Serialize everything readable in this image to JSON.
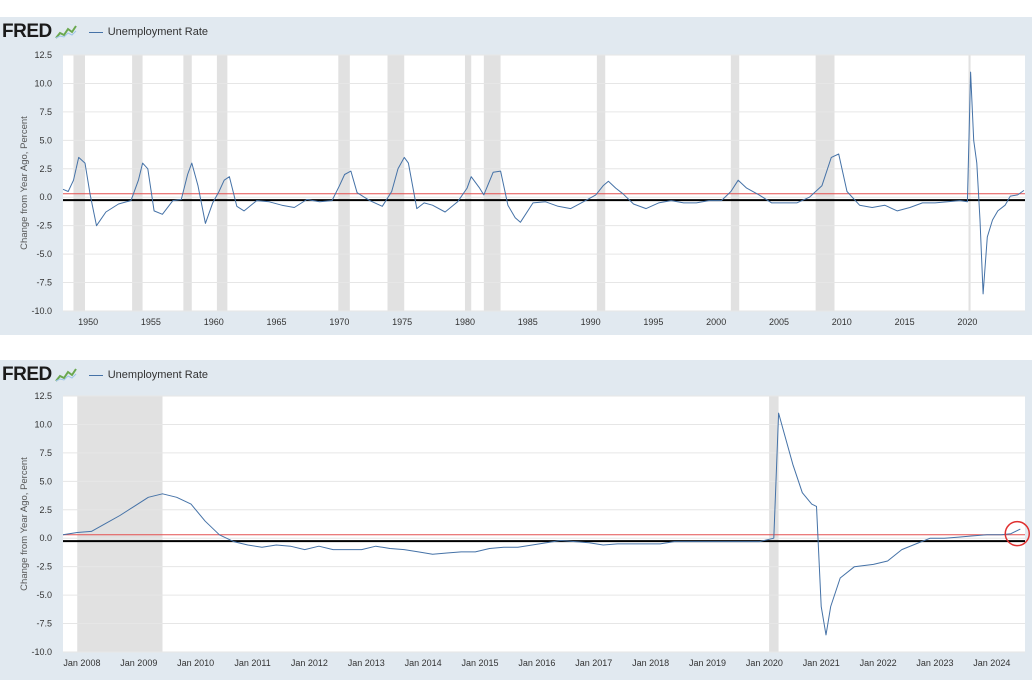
{
  "colors": {
    "panel_bg": "#e1e9f0",
    "plot_bg": "#ffffff",
    "series": "#4572a7",
    "recession": "#e1e1e1",
    "red_line": "#e45050",
    "zero_line": "#000000",
    "circle": "#e03030"
  },
  "chart_data": [
    {
      "type": "line",
      "brand": "FRED",
      "title": "",
      "ylabel": "Change from Year Ago, Percent",
      "xlabel": "",
      "ylim": [
        -10.0,
        12.5
      ],
      "xlim": [
        "1948-01",
        "2024-08"
      ],
      "x_ticks": [
        "1950",
        "1955",
        "1960",
        "1965",
        "1970",
        "1975",
        "1980",
        "1985",
        "1990",
        "1995",
        "2000",
        "2005",
        "2010",
        "2015",
        "2020"
      ],
      "x_tick_values": [
        "1950-01",
        "1955-01",
        "1960-01",
        "1965-01",
        "1970-01",
        "1975-01",
        "1980-01",
        "1985-01",
        "1990-01",
        "1995-01",
        "2000-01",
        "2005-01",
        "2010-01",
        "2015-01",
        "2020-01"
      ],
      "y_ticks": [
        "12.5",
        "10.0",
        "7.5",
        "5.0",
        "2.5",
        "0.0",
        "-2.5",
        "-5.0",
        "-7.5",
        "-10.0"
      ],
      "y_tick_values": [
        12.5,
        10.0,
        7.5,
        5.0,
        2.5,
        0.0,
        -2.5,
        -5.0,
        -7.5,
        -10.0
      ],
      "grid": "horizontal",
      "legend": "top-left",
      "recessions": [
        [
          "1948-11",
          "1949-10"
        ],
        [
          "1953-07",
          "1954-05"
        ],
        [
          "1957-08",
          "1958-04"
        ],
        [
          "1960-04",
          "1961-02"
        ],
        [
          "1969-12",
          "1970-11"
        ],
        [
          "1973-11",
          "1975-03"
        ],
        [
          "1980-01",
          "1980-07"
        ],
        [
          "1981-07",
          "1982-11"
        ],
        [
          "1990-07",
          "1991-03"
        ],
        [
          "2001-03",
          "2001-11"
        ],
        [
          "2007-12",
          "2009-06"
        ],
        [
          "2020-02",
          "2020-04"
        ]
      ],
      "reference_lines": [
        {
          "value": 0.3,
          "color": "#e45050"
        },
        {
          "value": -0.25,
          "color": "#000000"
        }
      ],
      "series": [
        {
          "name": "Unemployment Rate",
          "x": [
            "1948-01",
            "1948-06",
            "1948-11",
            "1949-04",
            "1949-10",
            "1950-03",
            "1950-09",
            "1951-06",
            "1952-06",
            "1953-06",
            "1954-01",
            "1954-05",
            "1954-10",
            "1955-04",
            "1955-12",
            "1956-10",
            "1957-06",
            "1957-12",
            "1958-04",
            "1958-10",
            "1959-05",
            "1959-12",
            "1960-06",
            "1960-11",
            "1961-04",
            "1961-11",
            "1962-06",
            "1963-06",
            "1964-06",
            "1965-06",
            "1966-06",
            "1967-06",
            "1968-06",
            "1969-06",
            "1970-01",
            "1970-06",
            "1970-12",
            "1971-06",
            "1972-06",
            "1973-06",
            "1974-03",
            "1974-09",
            "1975-03",
            "1975-07",
            "1976-03",
            "1976-10",
            "1977-06",
            "1978-06",
            "1979-06",
            "1980-03",
            "1980-07",
            "1981-03",
            "1981-07",
            "1982-04",
            "1982-11",
            "1983-06",
            "1984-01",
            "1984-06",
            "1985-06",
            "1986-06",
            "1987-06",
            "1988-06",
            "1989-06",
            "1990-06",
            "1991-01",
            "1991-06",
            "1992-01",
            "1992-08",
            "1993-06",
            "1994-06",
            "1995-06",
            "1996-06",
            "1997-06",
            "1998-06",
            "1999-06",
            "2000-06",
            "2001-03",
            "2001-10",
            "2002-06",
            "2003-06",
            "2004-06",
            "2005-06",
            "2006-06",
            "2007-06",
            "2008-06",
            "2009-03",
            "2009-10",
            "2010-06",
            "2011-06",
            "2012-06",
            "2013-06",
            "2014-06",
            "2015-06",
            "2016-06",
            "2017-06",
            "2018-06",
            "2019-06",
            "2020-01",
            "2020-04",
            "2020-07",
            "2020-10",
            "2021-01",
            "2021-04",
            "2021-08",
            "2022-01",
            "2022-06",
            "2023-01",
            "2023-06",
            "2024-01",
            "2024-07"
          ],
          "values": [
            0.7,
            0.5,
            1.5,
            3.5,
            3.0,
            0.2,
            -2.5,
            -1.3,
            -0.6,
            -0.3,
            1.5,
            3.0,
            2.5,
            -1.2,
            -1.5,
            -0.3,
            -0.2,
            2.0,
            3.0,
            1.0,
            -2.3,
            -0.5,
            0.5,
            1.5,
            1.8,
            -0.8,
            -1.2,
            -0.3,
            -0.4,
            -0.7,
            -0.9,
            -0.2,
            -0.4,
            -0.3,
            1.0,
            2.0,
            2.3,
            0.4,
            -0.3,
            -0.8,
            0.5,
            2.5,
            3.5,
            3.0,
            -1.0,
            -0.5,
            -0.7,
            -1.3,
            -0.4,
            0.8,
            1.8,
            0.8,
            0.2,
            2.2,
            2.3,
            -0.7,
            -1.8,
            -2.2,
            -0.5,
            -0.4,
            -0.8,
            -1.0,
            -0.4,
            0.2,
            1.0,
            1.4,
            0.8,
            0.3,
            -0.6,
            -1.0,
            -0.5,
            -0.3,
            -0.5,
            -0.5,
            -0.3,
            -0.3,
            0.5,
            1.5,
            0.8,
            0.2,
            -0.5,
            -0.5,
            -0.5,
            0.0,
            1.0,
            3.5,
            3.8,
            0.5,
            -0.7,
            -0.9,
            -0.7,
            -1.2,
            -0.9,
            -0.5,
            -0.5,
            -0.4,
            -0.3,
            -0.4,
            11.0,
            5.0,
            3.0,
            -2.0,
            -8.5,
            -3.5,
            -2.0,
            -1.2,
            -0.7,
            0.1,
            0.2,
            0.6
          ]
        }
      ]
    },
    {
      "type": "line",
      "brand": "FRED",
      "title": "",
      "ylabel": "Change from Year Ago, Percent",
      "xlabel": "",
      "ylim": [
        -10.0,
        12.5
      ],
      "xlim": [
        "2007-09",
        "2024-08"
      ],
      "x_ticks": [
        "Jan 2008",
        "Jan 2009",
        "Jan 2010",
        "Jan 2011",
        "Jan 2012",
        "Jan 2013",
        "Jan 2014",
        "Jan 2015",
        "Jan 2016",
        "Jan 2017",
        "Jan 2018",
        "Jan 2019",
        "Jan 2020",
        "Jan 2021",
        "Jan 2022",
        "Jan 2023",
        "Jan 2024"
      ],
      "x_tick_values": [
        "2008-01",
        "2009-01",
        "2010-01",
        "2011-01",
        "2012-01",
        "2013-01",
        "2014-01",
        "2015-01",
        "2016-01",
        "2017-01",
        "2018-01",
        "2019-01",
        "2020-01",
        "2021-01",
        "2022-01",
        "2023-01",
        "2024-01"
      ],
      "y_ticks": [
        "12.5",
        "10.0",
        "7.5",
        "5.0",
        "2.5",
        "0.0",
        "-2.5",
        "-5.0",
        "-7.5",
        "-10.0"
      ],
      "y_tick_values": [
        12.5,
        10.0,
        7.5,
        5.0,
        2.5,
        0.0,
        -2.5,
        -5.0,
        -7.5,
        -10.0
      ],
      "grid": "horizontal",
      "legend": "top-left",
      "recessions": [
        [
          "2007-12",
          "2009-06"
        ],
        [
          "2020-02",
          "2020-04"
        ]
      ],
      "reference_lines": [
        {
          "value": 0.3,
          "color": "#e45050"
        },
        {
          "value": -0.25,
          "color": "#000000"
        }
      ],
      "highlight_circle": "2024-07",
      "series": [
        {
          "name": "Unemployment Rate",
          "x": [
            "2007-09",
            "2007-12",
            "2008-03",
            "2008-06",
            "2008-09",
            "2008-12",
            "2009-03",
            "2009-06",
            "2009-09",
            "2009-12",
            "2010-03",
            "2010-06",
            "2010-09",
            "2010-12",
            "2011-03",
            "2011-06",
            "2011-09",
            "2011-12",
            "2012-03",
            "2012-06",
            "2012-09",
            "2012-12",
            "2013-03",
            "2013-06",
            "2013-09",
            "2013-12",
            "2014-03",
            "2014-06",
            "2014-09",
            "2014-12",
            "2015-03",
            "2015-06",
            "2015-09",
            "2015-12",
            "2016-03",
            "2016-06",
            "2016-09",
            "2016-12",
            "2017-03",
            "2017-06",
            "2017-09",
            "2017-12",
            "2018-03",
            "2018-06",
            "2018-09",
            "2018-12",
            "2019-03",
            "2019-06",
            "2019-09",
            "2019-12",
            "2020-03",
            "2020-04",
            "2020-05",
            "2020-07",
            "2020-09",
            "2020-11",
            "2020-12",
            "2021-01",
            "2021-02",
            "2021-03",
            "2021-05",
            "2021-08",
            "2021-12",
            "2022-03",
            "2022-06",
            "2022-09",
            "2022-12",
            "2023-03",
            "2023-06",
            "2023-09",
            "2023-12",
            "2024-03",
            "2024-05",
            "2024-07"
          ],
          "values": [
            0.3,
            0.5,
            0.6,
            1.3,
            2.0,
            2.8,
            3.6,
            3.9,
            3.6,
            3.0,
            1.5,
            0.3,
            -0.3,
            -0.6,
            -0.8,
            -0.6,
            -0.7,
            -1.0,
            -0.7,
            -1.0,
            -1.0,
            -1.0,
            -0.7,
            -0.9,
            -1.0,
            -1.2,
            -1.4,
            -1.3,
            -1.2,
            -1.2,
            -0.9,
            -0.8,
            -0.8,
            -0.6,
            -0.4,
            -0.2,
            -0.3,
            -0.4,
            -0.6,
            -0.5,
            -0.5,
            -0.5,
            -0.5,
            -0.3,
            -0.3,
            -0.3,
            -0.3,
            -0.3,
            -0.3,
            -0.3,
            0.0,
            11.0,
            9.5,
            6.5,
            4.0,
            3.0,
            2.8,
            -6.0,
            -8.5,
            -6.0,
            -3.5,
            -2.5,
            -2.3,
            -2.0,
            -1.0,
            -0.5,
            0.0,
            0.0,
            0.1,
            0.2,
            0.3,
            0.3,
            0.4,
            0.8
          ]
        }
      ]
    }
  ]
}
